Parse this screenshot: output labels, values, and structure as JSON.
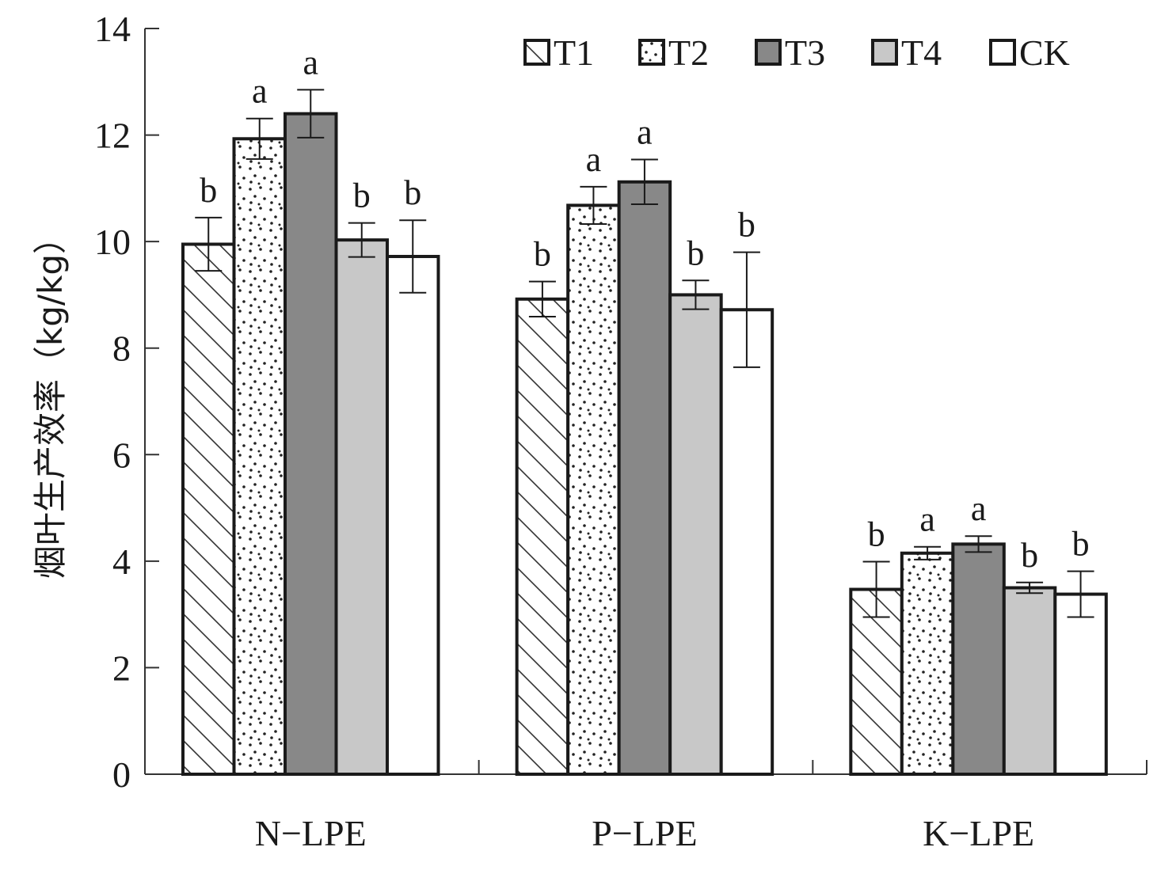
{
  "chart_data": {
    "type": "bar",
    "title": "",
    "xlabel": "",
    "ylabel": "烟叶生产效率（kg/kg）",
    "ylim": [
      0,
      14
    ],
    "yticks": [
      0,
      2,
      4,
      6,
      8,
      10,
      12,
      14
    ],
    "grid": false,
    "legend_position": "top-right",
    "categories": [
      "N−LPE",
      "P−LPE",
      "K−LPE"
    ],
    "series": [
      {
        "name": "T1",
        "pattern": "diagonal-hatch",
        "color": "#ffffff",
        "values": [
          9.95,
          8.92,
          3.47
        ],
        "errors": [
          0.5,
          0.33,
          0.52
        ],
        "significance": [
          "b",
          "b",
          "b"
        ]
      },
      {
        "name": "T2",
        "pattern": "dots",
        "color": "#ffffff",
        "values": [
          11.93,
          10.68,
          4.15
        ],
        "errors": [
          0.38,
          0.35,
          0.12
        ],
        "significance": [
          "a",
          "a",
          "a"
        ]
      },
      {
        "name": "T3",
        "pattern": "solid",
        "color": "#888888",
        "values": [
          12.4,
          11.12,
          4.32
        ],
        "errors": [
          0.45,
          0.42,
          0.15
        ],
        "significance": [
          "a",
          "a",
          "a"
        ]
      },
      {
        "name": "T4",
        "pattern": "solid",
        "color": "#c8c8c8",
        "values": [
          10.03,
          9.0,
          3.5
        ],
        "errors": [
          0.32,
          0.27,
          0.1
        ],
        "significance": [
          "b",
          "b",
          "b"
        ]
      },
      {
        "name": "CK",
        "pattern": "solid",
        "color": "#ffffff",
        "values": [
          9.72,
          8.72,
          3.38
        ],
        "errors": [
          0.68,
          1.08,
          0.43
        ],
        "significance": [
          "b",
          "b",
          "b"
        ]
      }
    ]
  }
}
